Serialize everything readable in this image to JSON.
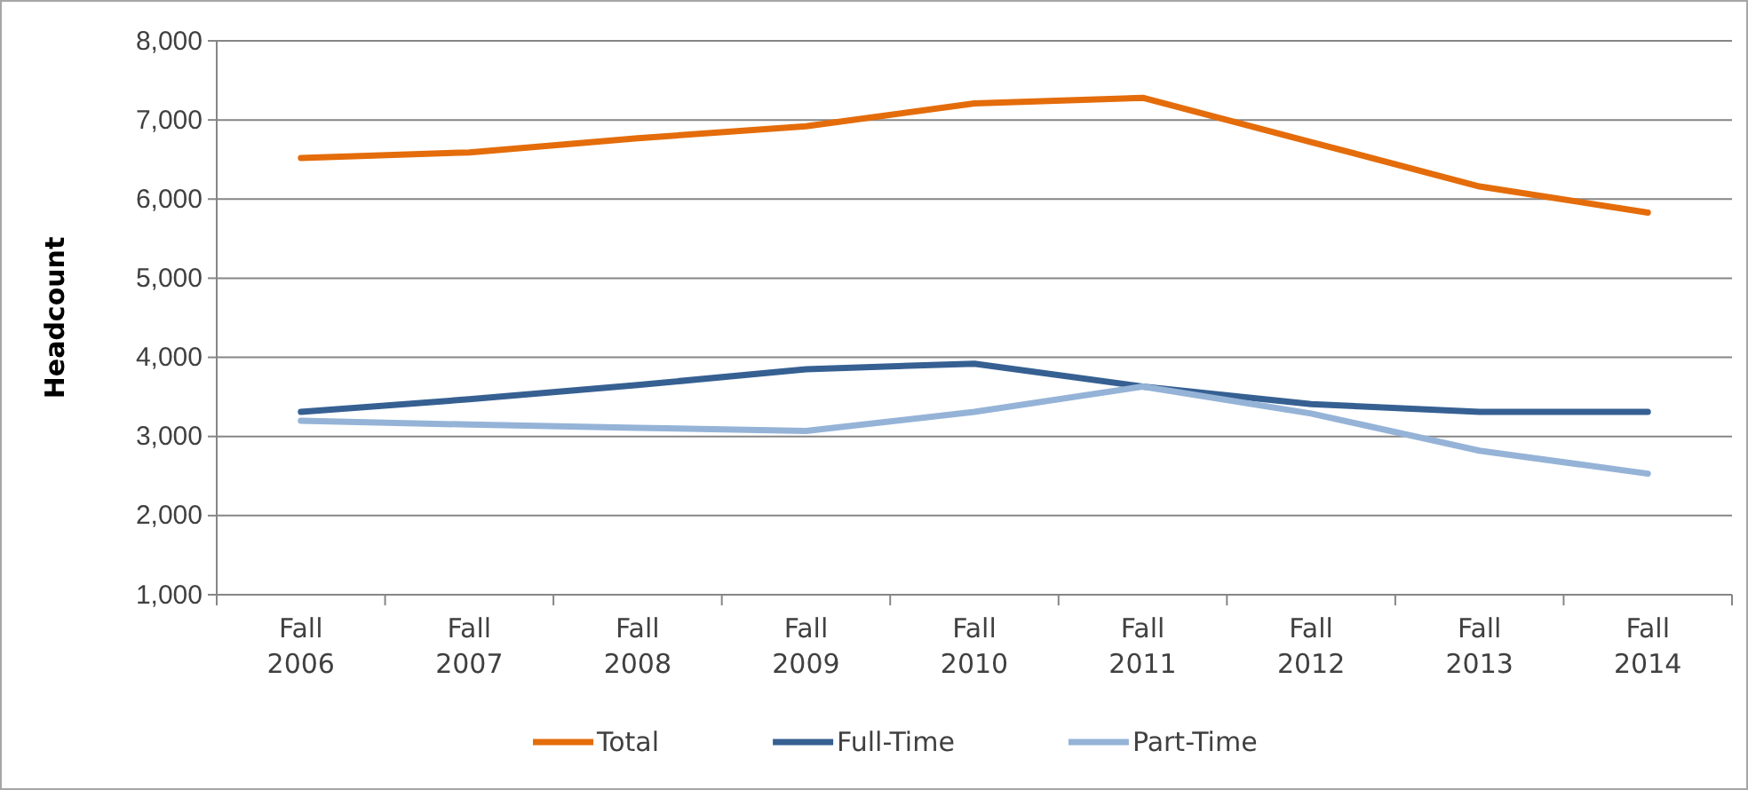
{
  "chart_data": {
    "type": "line",
    "ylabel": "Headcount",
    "categories": [
      "Fall\n2006",
      "Fall\n2007",
      "Fall\n2008",
      "Fall\n2009",
      "Fall\n2010",
      "Fall\n2011",
      "Fall\n2012",
      "Fall\n2013",
      "Fall\n2014"
    ],
    "series": [
      {
        "name": "Total",
        "color": "#e46c0a",
        "values": [
          6520,
          6590,
          6770,
          6920,
          7210,
          7280,
          6720,
          6160,
          5830
        ]
      },
      {
        "name": "Full-Time",
        "color": "#366092",
        "values": [
          3310,
          3470,
          3650,
          3850,
          3920,
          3630,
          3410,
          3310,
          3310
        ]
      },
      {
        "name": "Part-Time",
        "color": "#95b3d7",
        "values": [
          3200,
          3150,
          3110,
          3070,
          3310,
          3630,
          3290,
          2820,
          2530
        ]
      }
    ],
    "ylim": [
      1000,
      8000
    ],
    "yticks": [
      {
        "value": 1000,
        "label": "1,000"
      },
      {
        "value": 2000,
        "label": "2,000"
      },
      {
        "value": 3000,
        "label": "3,000"
      },
      {
        "value": 4000,
        "label": "4,000"
      },
      {
        "value": 5000,
        "label": "5,000"
      },
      {
        "value": 6000,
        "label": "6,000"
      },
      {
        "value": 7000,
        "label": "7,000"
      },
      {
        "value": 8000,
        "label": "8,000"
      }
    ],
    "grid": "y",
    "legend": "bottom",
    "marker": "none",
    "line_style": "solid"
  }
}
